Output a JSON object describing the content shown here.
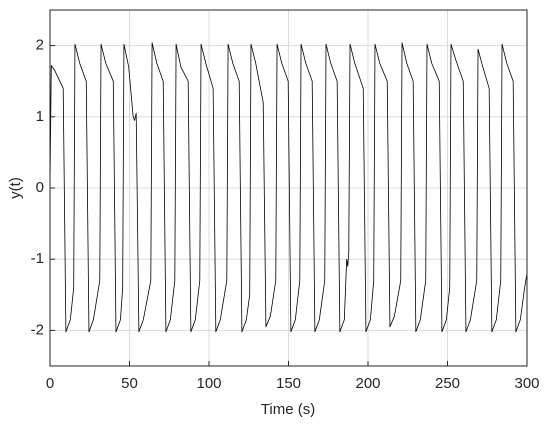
{
  "chart_data": {
    "type": "line",
    "xlabel": "Time (s)",
    "ylabel": "y(t)",
    "xlim": [
      0,
      300
    ],
    "xticks": [
      0,
      50,
      100,
      150,
      200,
      250,
      300
    ],
    "ylim": [
      -2.5,
      2.5
    ],
    "yticks": [
      -2,
      -1,
      0,
      1,
      2
    ],
    "grid": true,
    "series": [
      {
        "color": "#000000",
        "x": [
          0,
          0.8,
          3,
          8.3,
          10,
          12.8,
          14.9,
          15.7,
          18.7,
          22.8,
          24.5,
          27.3,
          31.3,
          32.1,
          35.1,
          39.8,
          41.5,
          44.3,
          45.7,
          46.5,
          49.5,
          52.3,
          53.2,
          54.2,
          55.9,
          58.7,
          63.4,
          64.2,
          67.2,
          71.2,
          72.9,
          75.7,
          78.5,
          79.3,
          82.3,
          86.9,
          88.6,
          91.4,
          94.2,
          95,
          98,
          102.6,
          104.3,
          107.1,
          111.2,
          112,
          115,
          119,
          120.7,
          123.5,
          125.6,
          126.4,
          129.4,
          134.1,
          135.8,
          138.6,
          142,
          142.8,
          145.8,
          149.8,
          151.5,
          154.3,
          157.1,
          157.9,
          160.9,
          164.9,
          166.6,
          169.4,
          172.8,
          173.6,
          176.6,
          180.6,
          182.3,
          185.1,
          186.6,
          187.3,
          187.9,
          188.7,
          191.7,
          197,
          198.7,
          201.5,
          203.6,
          204.4,
          207.4,
          212.1,
          213.8,
          216.6,
          220.6,
          221.4,
          224.4,
          228.4,
          230.1,
          232.9,
          236.3,
          237.1,
          240.1,
          244.8,
          246.5,
          249.3,
          251.4,
          252.2,
          255.2,
          259.9,
          261.6,
          264.4,
          268.4,
          269.2,
          272.2,
          276.2,
          277.9,
          280.7,
          283.5,
          284.3,
          287.3,
          291.3,
          293,
          295.8,
          298.5,
          300
        ],
        "values": [
          0,
          1.72,
          1.65,
          1.4,
          -2.02,
          -1.85,
          -1.4,
          2.02,
          1.75,
          1.5,
          -2.02,
          -1.85,
          -1.3,
          2.02,
          1.75,
          1.5,
          -2.02,
          -1.85,
          -1.4,
          2.02,
          1.7,
          1.0,
          0.95,
          1.05,
          -2.02,
          -1.85,
          -1.3,
          2.04,
          1.75,
          1.5,
          -2.02,
          -1.85,
          -1.3,
          2.02,
          1.7,
          1.5,
          -2.02,
          -1.85,
          -1.3,
          2.02,
          1.75,
          1.4,
          -2.02,
          -1.85,
          -1.3,
          2.02,
          1.75,
          1.5,
          -2.02,
          -1.85,
          -1.5,
          2.02,
          1.75,
          1.2,
          -1.95,
          -1.8,
          -1.3,
          2.02,
          1.75,
          1.5,
          -2.02,
          -1.85,
          -1.3,
          2.02,
          1.75,
          1.5,
          -2.02,
          -1.85,
          -1.3,
          2.02,
          1.75,
          1.5,
          -2.02,
          -1.85,
          -1.0,
          -1.1,
          -0.9,
          2.02,
          1.75,
          1.4,
          -2.02,
          -1.85,
          -1.3,
          2.02,
          1.75,
          1.5,
          -1.95,
          -1.8,
          -1.3,
          2.04,
          1.75,
          1.5,
          -2.02,
          -1.85,
          -1.3,
          2.02,
          1.75,
          1.5,
          -2.02,
          -1.85,
          -1.4,
          2.02,
          1.8,
          1.5,
          -2.02,
          -1.85,
          -1.3,
          1.95,
          1.7,
          1.4,
          -2.02,
          -1.85,
          -1.3,
          2.02,
          1.75,
          1.5,
          -2.02,
          -1.85,
          -1.4,
          -1.2
        ]
      }
    ]
  }
}
